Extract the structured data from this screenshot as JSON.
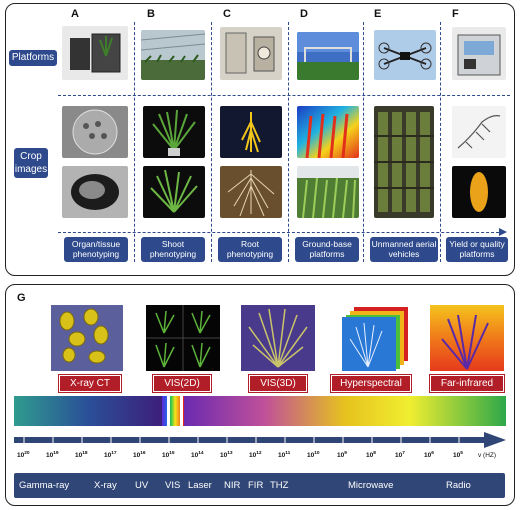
{
  "panel_top": {
    "columns": [
      "A",
      "B",
      "C",
      "D",
      "E",
      "F"
    ],
    "row_labels": {
      "platforms": "Platforms",
      "crop_images": "Crop images"
    },
    "categories": [
      "Organ/tissue phenotyping",
      "Shoot phenotyping",
      "Root phenotyping",
      "Ground-base platforms",
      "Unmanned aerial vehicles",
      "Yield or quality platforms"
    ]
  },
  "panel_bottom": {
    "letter": "G",
    "modalities": [
      "X-ray CT",
      "VIS(2D)",
      "VIS(3D)",
      "Hyperspectral",
      "Far-infrared"
    ],
    "ticks": [
      {
        "base": "10",
        "exp": "20"
      },
      {
        "base": "10",
        "exp": "19"
      },
      {
        "base": "10",
        "exp": "18"
      },
      {
        "base": "10",
        "exp": "17"
      },
      {
        "base": "10",
        "exp": "16"
      },
      {
        "base": "10",
        "exp": "15"
      },
      {
        "base": "10",
        "exp": "14"
      },
      {
        "base": "10",
        "exp": "13"
      },
      {
        "base": "10",
        "exp": "12"
      },
      {
        "base": "10",
        "exp": "11"
      },
      {
        "base": "10",
        "exp": "10"
      },
      {
        "base": "10",
        "exp": "9"
      },
      {
        "base": "10",
        "exp": "8"
      },
      {
        "base": "10",
        "exp": "7"
      },
      {
        "base": "10",
        "exp": "6"
      },
      {
        "base": "10",
        "exp": "5"
      }
    ],
    "unit_label": "v (HZ)",
    "bands": [
      "Gamma-ray",
      "X-ray",
      "UV",
      "VIS",
      "Laser",
      "NIR",
      "FIR",
      "THZ",
      "Microwave",
      "Radio"
    ]
  },
  "colors": {
    "navy": "#2e4a8c",
    "red_label": "#b21e28",
    "bar": "#2f4676"
  }
}
